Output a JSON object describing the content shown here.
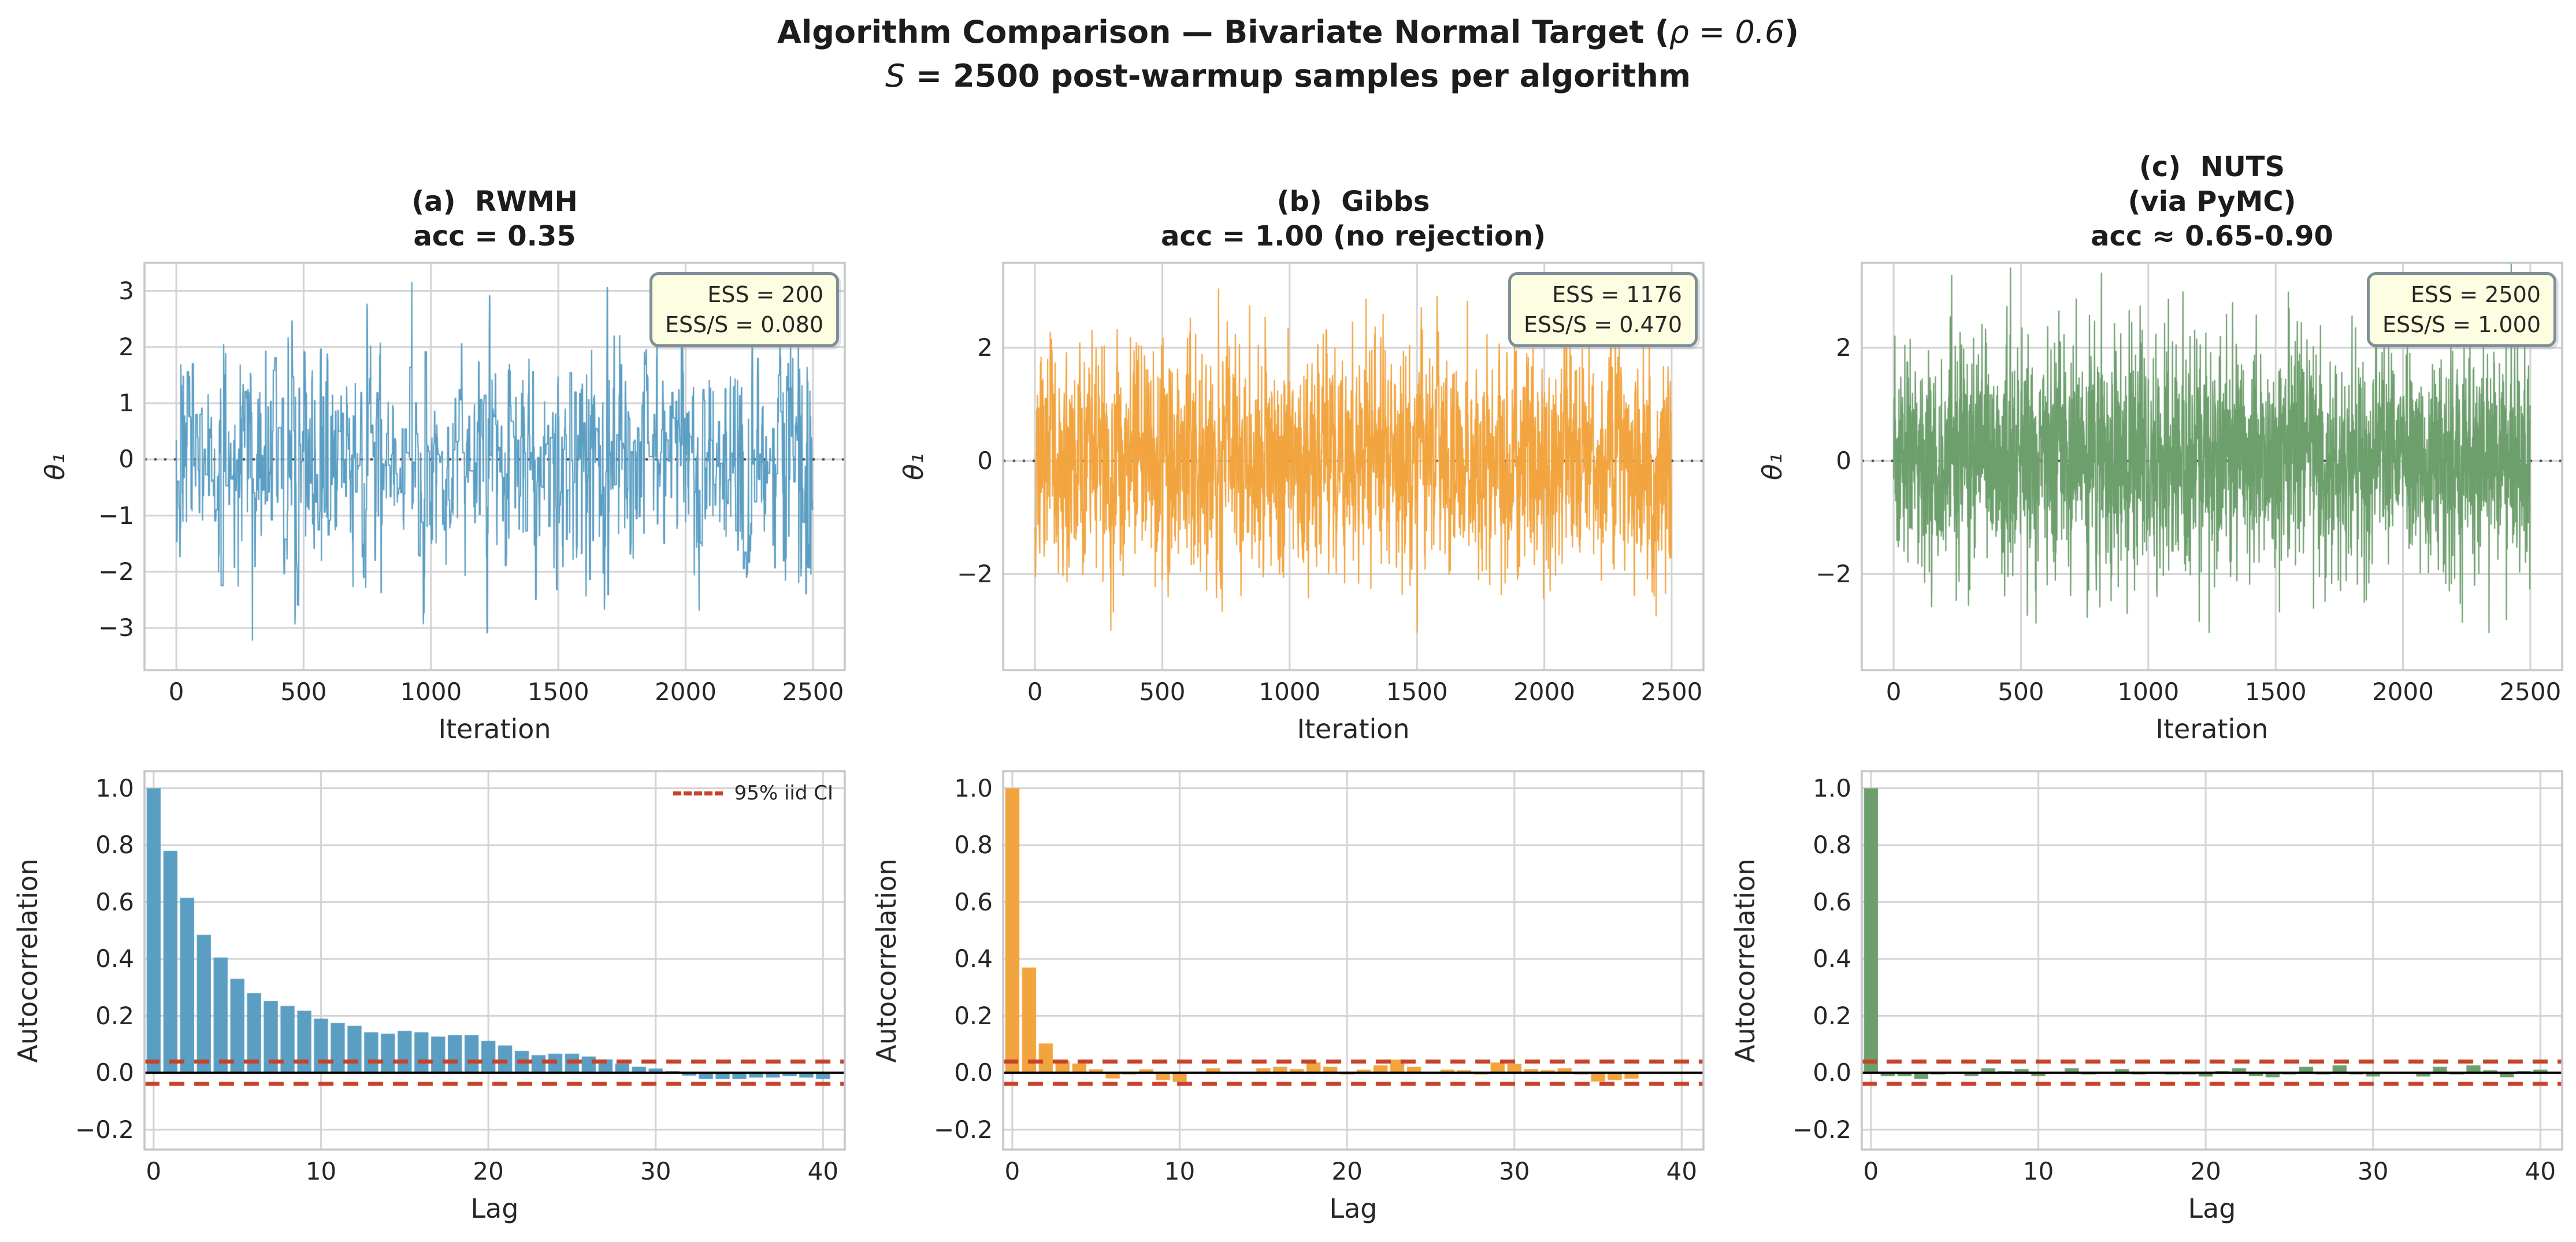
{
  "suptitle": {
    "line1_pre": "Algorithm Comparison — Bivariate Normal Target (",
    "line1_math": "ρ = 0.6",
    "line1_post": ")",
    "line2_math": "S",
    "line2_rest": " = 2500 post-warmup samples per algorithm"
  },
  "colors": {
    "rwmh": "#5B9EC3",
    "gibbs": "#F2A43F",
    "nuts": "#6D9F6D",
    "ci_line": "#C5432A",
    "grid": "#d2d2d2",
    "spine": "#c3c6c8",
    "zero_dotted": "#3b4450",
    "zero_solid": "#000000",
    "ess_box_bg": "#fdfde1",
    "ess_box_border": "#7e9096"
  },
  "algorithms": [
    {
      "key": "rwmh",
      "title_lines": [
        "(a)  RWMH",
        "acc = 0.35"
      ],
      "ess_lines": [
        "ESS = 200",
        "ESS/S = 0.080"
      ],
      "color": "#5B9EC3"
    },
    {
      "key": "gibbs",
      "title_lines": [
        "(b)  Gibbs",
        "acc = 1.00 (no rejection)"
      ],
      "ess_lines": [
        "ESS = 1176",
        "ESS/S = 0.470"
      ],
      "color": "#F2A43F"
    },
    {
      "key": "nuts",
      "title_lines": [
        "(c)  NUTS",
        "(via PyMC)",
        "acc ≈ 0.65-0.90"
      ],
      "ess_lines": [
        "ESS = 2500",
        "ESS/S = 1.000"
      ],
      "color": "#6D9F6D"
    }
  ],
  "chart_data": [
    {
      "id": "trace-rwmh",
      "type": "line",
      "title": "(a) RWMH acc = 0.35",
      "xlabel": "Iteration",
      "ylabel": "θ₁",
      "xlim": [
        -125,
        2625
      ],
      "ylim": [
        -3.75,
        3.5
      ],
      "xticks": [
        0,
        500,
        1000,
        1500,
        2000,
        2500
      ],
      "ytick_vals": [
        -3,
        -2,
        -1,
        0,
        1,
        2,
        3
      ],
      "ytick_labels": [
        "−3",
        "−2",
        "−1",
        "0",
        "1",
        "2",
        "3"
      ],
      "zero_line": 0,
      "grid": true,
      "n_points": 2500,
      "generator": {
        "kind": "metropolis",
        "seed": 91,
        "step": 2.6
      }
    },
    {
      "id": "trace-gibbs",
      "type": "line",
      "title": "(b) Gibbs acc = 1.00 (no rejection)",
      "xlabel": "Iteration",
      "ylabel": "θ₁",
      "xlim": [
        -125,
        2625
      ],
      "ylim": [
        -3.7,
        3.5
      ],
      "xticks": [
        0,
        500,
        1000,
        1500,
        2000,
        2500
      ],
      "ytick_vals": [
        -2,
        0,
        2
      ],
      "ytick_labels": [
        "−2",
        "0",
        "2"
      ],
      "zero_line": 0,
      "grid": true,
      "n_points": 2500,
      "generator": {
        "kind": "ar1",
        "seed": 57,
        "phi": 0.36
      }
    },
    {
      "id": "trace-nuts",
      "type": "line",
      "title": "(c) NUTS (via PyMC) acc ≈ 0.65-0.90",
      "xlabel": "Iteration",
      "ylabel": "θ₁",
      "xlim": [
        -125,
        2625
      ],
      "ylim": [
        -3.7,
        3.5
      ],
      "xticks": [
        0,
        500,
        1000,
        1500,
        2000,
        2500
      ],
      "ytick_vals": [
        -2,
        0,
        2
      ],
      "ytick_labels": [
        "−2",
        "0",
        "2"
      ],
      "zero_line": 0,
      "grid": true,
      "n_points": 2500,
      "generator": {
        "kind": "iid",
        "seed": 23
      }
    },
    {
      "id": "acf-rwmh",
      "type": "bar",
      "xlabel": "Lag",
      "ylabel": "Autocorrelation",
      "xlim": [
        -0.55,
        41.3
      ],
      "ylim": [
        -0.27,
        1.06
      ],
      "xticks": [
        0,
        10,
        20,
        30,
        40
      ],
      "ytick_vals": [
        -0.2,
        0.0,
        0.2,
        0.4,
        0.6,
        0.8,
        1.0
      ],
      "ytick_labels": [
        "−0.2",
        "0.0",
        "0.2",
        "0.4",
        "0.6",
        "0.8",
        "1.0"
      ],
      "ci": 0.039,
      "legend": "95% iid CI",
      "grid": true,
      "values": [
        1.0,
        0.78,
        0.615,
        0.485,
        0.405,
        0.33,
        0.28,
        0.252,
        0.235,
        0.218,
        0.19,
        0.175,
        0.165,
        0.142,
        0.137,
        0.147,
        0.142,
        0.127,
        0.132,
        0.132,
        0.112,
        0.096,
        0.077,
        0.062,
        0.067,
        0.067,
        0.057,
        0.047,
        0.032,
        0.021,
        0.015,
        0.006,
        -0.01,
        -0.022,
        -0.022,
        -0.022,
        -0.017,
        -0.017,
        -0.012,
        -0.017,
        -0.022
      ]
    },
    {
      "id": "acf-gibbs",
      "type": "bar",
      "xlabel": "Lag",
      "ylabel": "Autocorrelation",
      "xlim": [
        -0.55,
        41.3
      ],
      "ylim": [
        -0.27,
        1.06
      ],
      "xticks": [
        0,
        10,
        20,
        30,
        40
      ],
      "ytick_vals": [
        -0.2,
        0.0,
        0.2,
        0.4,
        0.6,
        0.8,
        1.0
      ],
      "ytick_labels": [
        "−0.2",
        "0.0",
        "0.2",
        "0.4",
        "0.6",
        "0.8",
        "1.0"
      ],
      "ci": 0.039,
      "legend": null,
      "grid": true,
      "values": [
        1.0,
        0.37,
        0.103,
        0.042,
        0.032,
        0.012,
        -0.02,
        -0.006,
        0.012,
        -0.026,
        -0.032,
        0.003,
        0.016,
        -0.003,
        -0.003,
        0.016,
        0.021,
        0.013,
        0.036,
        0.021,
        -0.006,
        0.011,
        0.026,
        0.046,
        0.021,
        0.001,
        0.011,
        0.009,
        -0.006,
        0.036,
        0.031,
        0.013,
        0.009,
        0.016,
        -0.006,
        -0.031,
        -0.026,
        -0.021,
        -0.004,
        0.002,
        -0.004
      ]
    },
    {
      "id": "acf-nuts",
      "type": "bar",
      "xlabel": "Lag",
      "ylabel": "Autocorrelation",
      "xlim": [
        -0.55,
        41.3
      ],
      "ylim": [
        -0.27,
        1.06
      ],
      "xticks": [
        0,
        10,
        20,
        30,
        40
      ],
      "ytick_vals": [
        -0.2,
        0.0,
        0.2,
        0.4,
        0.6,
        0.8,
        1.0
      ],
      "ytick_labels": [
        "−0.2",
        "0.0",
        "0.2",
        "0.4",
        "0.6",
        "0.8",
        "1.0"
      ],
      "ci": 0.039,
      "legend": null,
      "grid": true,
      "values": [
        1.0,
        -0.012,
        -0.012,
        -0.022,
        -0.006,
        0.001,
        -0.012,
        0.016,
        0.006,
        0.013,
        -0.012,
        0.001,
        0.016,
        -0.006,
        0.001,
        0.013,
        -0.006,
        -0.003,
        -0.006,
        -0.006,
        -0.013,
        0.006,
        0.016,
        -0.012,
        -0.016,
        -0.006,
        0.021,
        -0.006,
        0.026,
        -0.006,
        -0.013,
        0.001,
        0.001,
        -0.013,
        0.021,
        -0.006,
        0.026,
        0.009,
        -0.016,
        0.006,
        0.011
      ]
    }
  ],
  "trace_axes": {
    "xlabel": "Iteration",
    "ylabel": "θ₁"
  },
  "acf_axes": {
    "xlabel": "Lag",
    "ylabel": "Autocorrelation",
    "legend_label": "95% iid CI"
  }
}
